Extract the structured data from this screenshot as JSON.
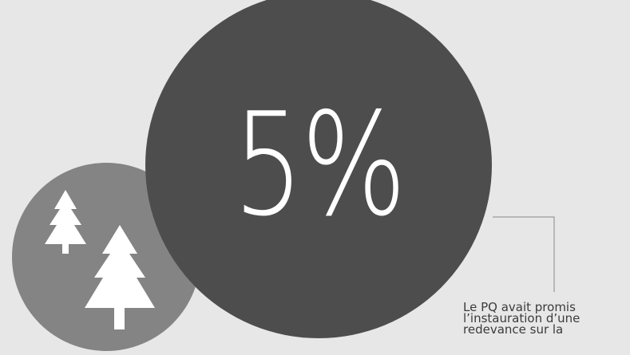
{
  "stat": {
    "value": "5%"
  },
  "caption": {
    "text": "Le PQ avait promis\nl’instauration d’une\nredevance sur la"
  },
  "colors": {
    "background": "#e7e7e7",
    "big_circle": "#4d4d4d",
    "small_circle": "#848484",
    "tree": "#ffffff",
    "connector_line": "#8a8a8a",
    "caption_text": "#3b3b3b"
  },
  "icons": {
    "trees": "pine-trees-icon"
  }
}
